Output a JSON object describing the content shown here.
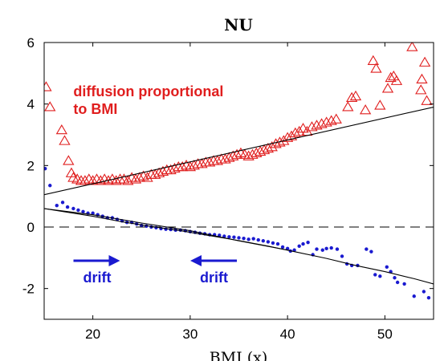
{
  "chart_data": {
    "type": "scatter",
    "title": "NU",
    "xlabel": "BMI (x)",
    "ylabel": "",
    "xlim": [
      15,
      55
    ],
    "ylim": [
      -3,
      6
    ],
    "xticks": [
      20,
      30,
      40,
      50
    ],
    "yticks": [
      -2,
      0,
      2,
      4,
      6
    ],
    "xtick_labels": [
      "20",
      "30",
      "40",
      "50"
    ],
    "ytick_labels": [
      "-2",
      "0",
      "2",
      "4",
      "6"
    ],
    "grid": false,
    "colors": {
      "diffusion": "#e01e1e",
      "drift": "#1a1ad0",
      "fit": "#000000",
      "zero_line": "#000000"
    },
    "series": [
      {
        "marker": "triangle",
        "points": [
          [
            15.2,
            4.55
          ],
          [
            15.6,
            3.9
          ],
          [
            16.8,
            3.15
          ],
          [
            17.1,
            2.8
          ],
          [
            17.5,
            2.15
          ],
          [
            17.8,
            1.75
          ],
          [
            18.0,
            1.6
          ],
          [
            18.4,
            1.55
          ],
          [
            18.8,
            1.5
          ],
          [
            19.2,
            1.5
          ],
          [
            19.6,
            1.55
          ],
          [
            20.0,
            1.5
          ],
          [
            20.4,
            1.55
          ],
          [
            20.8,
            1.5
          ],
          [
            21.2,
            1.55
          ],
          [
            21.6,
            1.5
          ],
          [
            22.0,
            1.55
          ],
          [
            22.4,
            1.5
          ],
          [
            22.8,
            1.55
          ],
          [
            23.2,
            1.55
          ],
          [
            23.6,
            1.5
          ],
          [
            24.0,
            1.6
          ],
          [
            24.4,
            1.55
          ],
          [
            24.8,
            1.6
          ],
          [
            25.2,
            1.65
          ],
          [
            25.6,
            1.6
          ],
          [
            26.0,
            1.7
          ],
          [
            26.4,
            1.7
          ],
          [
            26.8,
            1.75
          ],
          [
            27.2,
            1.8
          ],
          [
            27.6,
            1.85
          ],
          [
            28.0,
            1.85
          ],
          [
            28.4,
            1.9
          ],
          [
            28.8,
            1.95
          ],
          [
            29.2,
            1.95
          ],
          [
            29.6,
            2.0
          ],
          [
            30.0,
            1.95
          ],
          [
            30.4,
            2.0
          ],
          [
            30.8,
            2.05
          ],
          [
            31.2,
            2.05
          ],
          [
            31.6,
            2.1
          ],
          [
            32.0,
            2.1
          ],
          [
            32.4,
            2.15
          ],
          [
            32.8,
            2.15
          ],
          [
            33.2,
            2.2
          ],
          [
            33.6,
            2.2
          ],
          [
            34.0,
            2.25
          ],
          [
            34.4,
            2.3
          ],
          [
            34.8,
            2.35
          ],
          [
            35.2,
            2.4
          ],
          [
            35.6,
            2.35
          ],
          [
            36.0,
            2.3
          ],
          [
            36.4,
            2.35
          ],
          [
            36.8,
            2.4
          ],
          [
            37.2,
            2.45
          ],
          [
            37.6,
            2.5
          ],
          [
            38.0,
            2.55
          ],
          [
            38.4,
            2.6
          ],
          [
            38.8,
            2.7
          ],
          [
            39.2,
            2.75
          ],
          [
            39.6,
            2.8
          ],
          [
            40.0,
            2.9
          ],
          [
            40.4,
            2.95
          ],
          [
            40.8,
            3.05
          ],
          [
            41.2,
            3.1
          ],
          [
            41.6,
            3.2
          ],
          [
            42.0,
            3.1
          ],
          [
            42.5,
            3.25
          ],
          [
            43.0,
            3.3
          ],
          [
            43.5,
            3.35
          ],
          [
            44.0,
            3.4
          ],
          [
            44.5,
            3.45
          ],
          [
            45.0,
            3.5
          ],
          [
            46.2,
            3.9
          ],
          [
            46.6,
            4.2
          ],
          [
            47.0,
            4.25
          ],
          [
            48.0,
            3.8
          ],
          [
            48.8,
            5.4
          ],
          [
            49.1,
            5.15
          ],
          [
            49.5,
            3.95
          ],
          [
            50.3,
            4.5
          ],
          [
            50.6,
            4.85
          ],
          [
            50.9,
            4.9
          ],
          [
            51.2,
            4.75
          ],
          [
            52.8,
            5.85
          ],
          [
            53.7,
            4.45
          ],
          [
            53.8,
            4.8
          ],
          [
            54.1,
            5.35
          ],
          [
            54.3,
            4.1
          ]
        ]
      },
      {
        "marker": "dot",
        "points": [
          [
            15.1,
            1.9
          ],
          [
            15.6,
            1.35
          ],
          [
            16.3,
            0.7
          ],
          [
            16.9,
            0.8
          ],
          [
            17.4,
            0.65
          ],
          [
            18.0,
            0.6
          ],
          [
            18.5,
            0.55
          ],
          [
            19.0,
            0.5
          ],
          [
            19.5,
            0.45
          ],
          [
            20.0,
            0.45
          ],
          [
            20.5,
            0.4
          ],
          [
            21.0,
            0.35
          ],
          [
            21.5,
            0.3
          ],
          [
            22.0,
            0.3
          ],
          [
            22.5,
            0.25
          ],
          [
            23.0,
            0.2
          ],
          [
            23.5,
            0.15
          ],
          [
            24.0,
            0.15
          ],
          [
            24.5,
            0.1
          ],
          [
            25.0,
            0.05
          ],
          [
            25.5,
            0.03
          ],
          [
            26.0,
            0.0
          ],
          [
            26.5,
            -0.02
          ],
          [
            27.0,
            -0.05
          ],
          [
            27.5,
            -0.07
          ],
          [
            28.0,
            -0.08
          ],
          [
            28.5,
            -0.1
          ],
          [
            29.0,
            -0.1
          ],
          [
            29.5,
            -0.12
          ],
          [
            30.0,
            -0.15
          ],
          [
            30.5,
            -0.17
          ],
          [
            31.0,
            -0.2
          ],
          [
            31.5,
            -0.22
          ],
          [
            32.0,
            -0.25
          ],
          [
            32.5,
            -0.25
          ],
          [
            33.0,
            -0.27
          ],
          [
            33.5,
            -0.3
          ],
          [
            34.0,
            -0.32
          ],
          [
            34.5,
            -0.33
          ],
          [
            35.0,
            -0.35
          ],
          [
            35.5,
            -0.37
          ],
          [
            36.0,
            -0.4
          ],
          [
            36.5,
            -0.38
          ],
          [
            37.0,
            -0.42
          ],
          [
            37.5,
            -0.45
          ],
          [
            38.0,
            -0.48
          ],
          [
            38.5,
            -0.52
          ],
          [
            39.0,
            -0.55
          ],
          [
            39.5,
            -0.65
          ],
          [
            40.0,
            -0.7
          ],
          [
            40.3,
            -0.78
          ],
          [
            40.7,
            -0.75
          ],
          [
            41.2,
            -0.62
          ],
          [
            41.6,
            -0.55
          ],
          [
            42.1,
            -0.5
          ],
          [
            42.6,
            -0.9
          ],
          [
            43.0,
            -0.72
          ],
          [
            43.6,
            -0.75
          ],
          [
            44.0,
            -0.7
          ],
          [
            44.5,
            -0.68
          ],
          [
            45.1,
            -0.72
          ],
          [
            45.6,
            -0.95
          ],
          [
            46.1,
            -1.2
          ],
          [
            46.6,
            -1.25
          ],
          [
            47.2,
            -1.25
          ],
          [
            48.1,
            -0.72
          ],
          [
            48.6,
            -0.8
          ],
          [
            49.0,
            -1.55
          ],
          [
            49.5,
            -1.6
          ],
          [
            50.2,
            -1.3
          ],
          [
            50.6,
            -1.45
          ],
          [
            51.0,
            -1.65
          ],
          [
            51.3,
            -1.8
          ],
          [
            52.0,
            -1.85
          ],
          [
            53.0,
            -2.25
          ],
          [
            54.0,
            -2.1
          ],
          [
            54.5,
            -2.3
          ]
        ]
      },
      {
        "type": "line",
        "style": "solid",
        "points": [
          [
            15,
            1.05
          ],
          [
            55,
            3.9
          ]
        ]
      },
      {
        "type": "line",
        "style": "solid",
        "points": [
          [
            15,
            0.6
          ],
          [
            17,
            0.5
          ],
          [
            20,
            0.35
          ],
          [
            23,
            0.17
          ],
          [
            26,
            0.02
          ],
          [
            29,
            -0.12
          ],
          [
            32,
            -0.28
          ],
          [
            35,
            -0.44
          ],
          [
            38,
            -0.62
          ],
          [
            41,
            -0.82
          ],
          [
            44,
            -1.02
          ],
          [
            47,
            -1.25
          ],
          [
            50,
            -1.45
          ],
          [
            53,
            -1.68
          ],
          [
            55,
            -1.85
          ]
        ]
      },
      {
        "type": "line",
        "style": "solid",
        "points": [
          [
            15,
            0.6
          ],
          [
            20,
            0.4
          ],
          [
            25,
            0.13
          ],
          [
            30,
            -0.12
          ],
          [
            35,
            -0.45
          ],
          [
            40,
            -0.75
          ]
        ]
      },
      {
        "type": "line",
        "style": "dashed",
        "points": [
          [
            15,
            0
          ],
          [
            55,
            0
          ]
        ]
      }
    ],
    "annotations": [
      {
        "lines": [
          "diffusion proportional",
          "to BMI"
        ],
        "color": "red",
        "x": 18,
        "y": 4.25
      },
      {
        "lines": [
          "drift"
        ],
        "color": "blue",
        "arrow": "right",
        "x": 19,
        "y": -1.8
      },
      {
        "lines": [
          "drift"
        ],
        "color": "blue",
        "arrow": "left",
        "x": 31,
        "y": -1.8
      }
    ]
  }
}
